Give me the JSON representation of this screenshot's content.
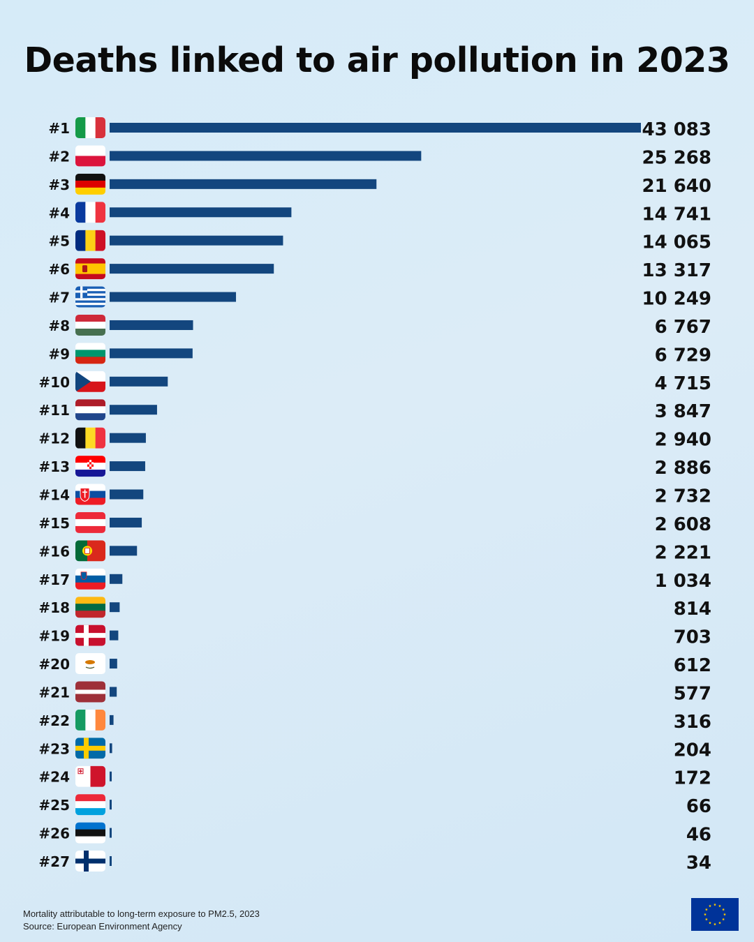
{
  "chart_data": {
    "type": "bar",
    "orientation": "horizontal",
    "title": "Deaths linked to air pollution in 2023",
    "xlabel": "",
    "ylabel": "",
    "xlim": [
      0,
      43083
    ],
    "bar_color": "#13467e",
    "items": [
      {
        "rank": "#1",
        "country": "Italy",
        "value": 43083,
        "label": "43 083"
      },
      {
        "rank": "#2",
        "country": "Poland",
        "value": 25268,
        "label": "25 268"
      },
      {
        "rank": "#3",
        "country": "Germany",
        "value": 21640,
        "label": "21 640"
      },
      {
        "rank": "#4",
        "country": "France",
        "value": 14741,
        "label": "14 741"
      },
      {
        "rank": "#5",
        "country": "Romania",
        "value": 14065,
        "label": "14 065"
      },
      {
        "rank": "#6",
        "country": "Spain",
        "value": 13317,
        "label": "13 317"
      },
      {
        "rank": "#7",
        "country": "Greece",
        "value": 10249,
        "label": "10 249"
      },
      {
        "rank": "#8",
        "country": "Hungary",
        "value": 6767,
        "label": "6 767"
      },
      {
        "rank": "#9",
        "country": "Bulgaria",
        "value": 6729,
        "label": "6 729"
      },
      {
        "rank": "#10",
        "country": "Czechia",
        "value": 4715,
        "label": "4 715"
      },
      {
        "rank": "#11",
        "country": "Netherlands",
        "value": 3847,
        "label": "3 847"
      },
      {
        "rank": "#12",
        "country": "Belgium",
        "value": 2940,
        "label": "2 940"
      },
      {
        "rank": "#13",
        "country": "Croatia",
        "value": 2886,
        "label": "2 886"
      },
      {
        "rank": "#14",
        "country": "Slovakia",
        "value": 2732,
        "label": "2 732"
      },
      {
        "rank": "#15",
        "country": "Austria",
        "value": 2608,
        "label": "2 608"
      },
      {
        "rank": "#16",
        "country": "Portugal",
        "value": 2221,
        "label": "2 221"
      },
      {
        "rank": "#17",
        "country": "Slovenia",
        "value": 1034,
        "label": "1 034"
      },
      {
        "rank": "#18",
        "country": "Lithuania",
        "value": 814,
        "label": "814"
      },
      {
        "rank": "#19",
        "country": "Denmark",
        "value": 703,
        "label": "703"
      },
      {
        "rank": "#20",
        "country": "Cyprus",
        "value": 612,
        "label": "612"
      },
      {
        "rank": "#21",
        "country": "Latvia",
        "value": 577,
        "label": "577"
      },
      {
        "rank": "#22",
        "country": "Ireland",
        "value": 316,
        "label": "316"
      },
      {
        "rank": "#23",
        "country": "Sweden",
        "value": 204,
        "label": "204"
      },
      {
        "rank": "#24",
        "country": "Malta",
        "value": 172,
        "label": "172"
      },
      {
        "rank": "#25",
        "country": "Luxembourg",
        "value": 66,
        "label": "66"
      },
      {
        "rank": "#26",
        "country": "Estonia",
        "value": 46,
        "label": "46"
      },
      {
        "rank": "#27",
        "country": "Finland",
        "value": 34,
        "label": "34"
      }
    ]
  },
  "footer": {
    "note": "Mortality attributable to long-term exposure to PM2.5, 2023",
    "source": "Source: European Environment Agency"
  },
  "logo": {
    "icon": "eu-flag-icon",
    "colors": {
      "blue": "#003399",
      "star": "#ffcc00"
    }
  }
}
